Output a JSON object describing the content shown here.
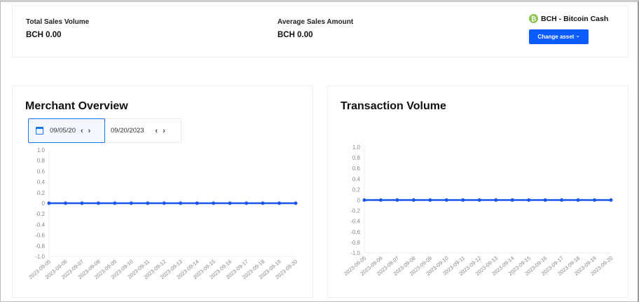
{
  "summary": {
    "total_label": "Total Sales Volume",
    "total_value": "BCH 0.00",
    "avg_label": "Average Sales Amount",
    "avg_value": "BCH 0.00",
    "asset_label": "BCH - Bitcoin Cash",
    "asset_icon": "bitcoin-cash-icon",
    "asset_color": "#8dc351",
    "change_button": "Change asset",
    "change_button_chevron": "⌄"
  },
  "merchant": {
    "title": "Merchant Overview",
    "start_date": "09/05/20",
    "end_date": "09/20/2023"
  },
  "transaction": {
    "title": "Transaction Volume"
  },
  "chart_data": [
    {
      "type": "line",
      "title": "Merchant Overview",
      "x": [
        "2023-09-05",
        "2023-09-06",
        "2023-09-07",
        "2023-09-08",
        "2023-09-09",
        "2023-09-10",
        "2023-09-11",
        "2023-09-12",
        "2023-09-13",
        "2023-09-14",
        "2023-09-15",
        "2023-09-16",
        "2023-09-17",
        "2023-09-18",
        "2023-09-19",
        "2023-09-20"
      ],
      "values": [
        0,
        0,
        0,
        0,
        0,
        0,
        0,
        0,
        0,
        0,
        0,
        0,
        0,
        0,
        0,
        0
      ],
      "ylim": [
        -1,
        1
      ],
      "yticks": [
        "1.0",
        "0.8",
        "0.6",
        "0.4",
        "0.2",
        "0",
        "-0.2",
        "-0.4",
        "-0.6",
        "-0.8",
        "-1.0"
      ],
      "color": "#1a56e8"
    },
    {
      "type": "line",
      "title": "Transaction Volume",
      "x": [
        "2023-09-05",
        "2023-09-06",
        "2023-09-07",
        "2023-09-08",
        "2023-09-09",
        "2023-09-10",
        "2023-09-11",
        "2023-09-12",
        "2023-09-13",
        "2023-09-14",
        "2023-09-15",
        "2023-09-16",
        "2023-09-17",
        "2023-09-18",
        "2023-09-19",
        "2023-09-20"
      ],
      "values": [
        0,
        0,
        0,
        0,
        0,
        0,
        0,
        0,
        0,
        0,
        0,
        0,
        0,
        0,
        0,
        0
      ],
      "ylim": [
        -1,
        1
      ],
      "yticks": [
        "1.0",
        "0.8",
        "0.6",
        "0.4",
        "0.2",
        "0",
        "-0.2",
        "-0.4",
        "-0.6",
        "-0.8",
        "-1.0"
      ],
      "color": "#1a56e8"
    }
  ]
}
